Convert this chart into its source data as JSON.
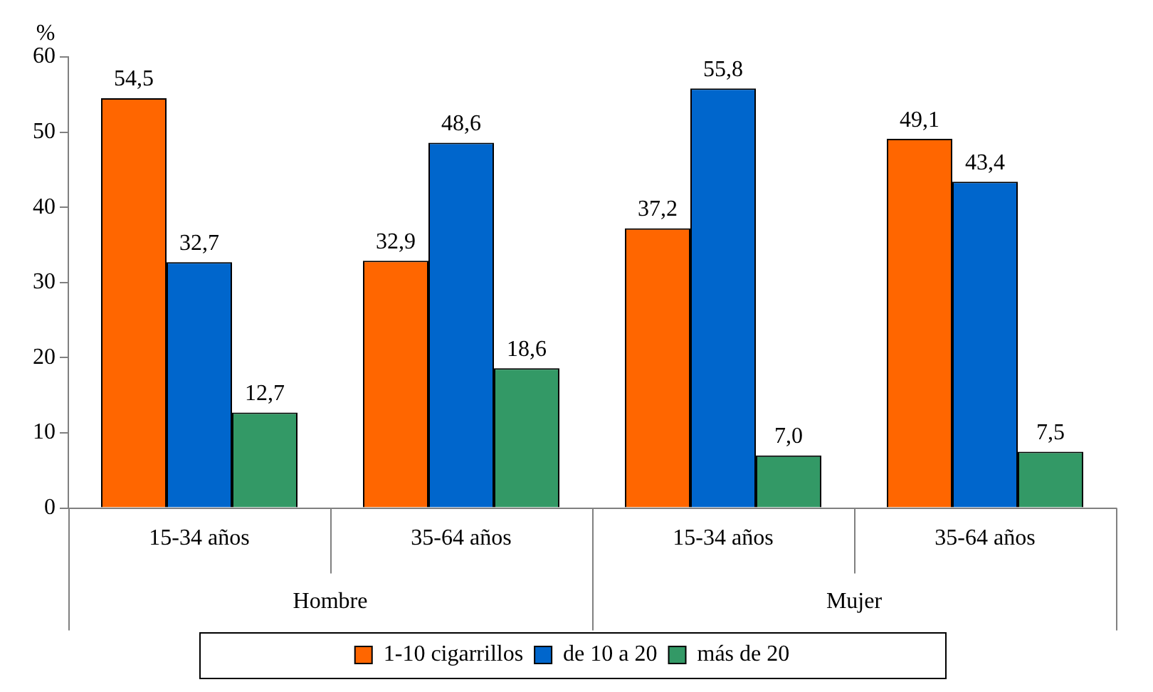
{
  "chart_data": {
    "type": "bar",
    "ylabel": "%",
    "categories": [
      "15-34 años",
      "35-64 años",
      "15-34 años",
      "35-64 años"
    ],
    "annotations": [
      "Hombre",
      "Mujer"
    ],
    "series": [
      {
        "name": "1-10 cigarrillos",
        "color": "#ff6600",
        "values": [
          54.5,
          32.9,
          37.2,
          49.1
        ],
        "value_labels": [
          "54,5",
          "32,9",
          "37,2",
          "49,1"
        ]
      },
      {
        "name": "de 10 a 20",
        "color": "#0066cc",
        "values": [
          32.7,
          48.6,
          55.8,
          43.4
        ],
        "value_labels": [
          "32,7",
          "48,6",
          "55,8",
          "43,4"
        ]
      },
      {
        "name": "más de 20",
        "color": "#339966",
        "values": [
          12.7,
          18.6,
          7.0,
          7.5
        ],
        "value_labels": [
          "12,7",
          "18,6",
          "7,0",
          "7,5"
        ]
      }
    ],
    "ylim": [
      0,
      60
    ],
    "yticks": [
      0,
      10,
      20,
      30,
      40,
      50,
      60
    ],
    "grid": false,
    "legend": "bottom"
  }
}
